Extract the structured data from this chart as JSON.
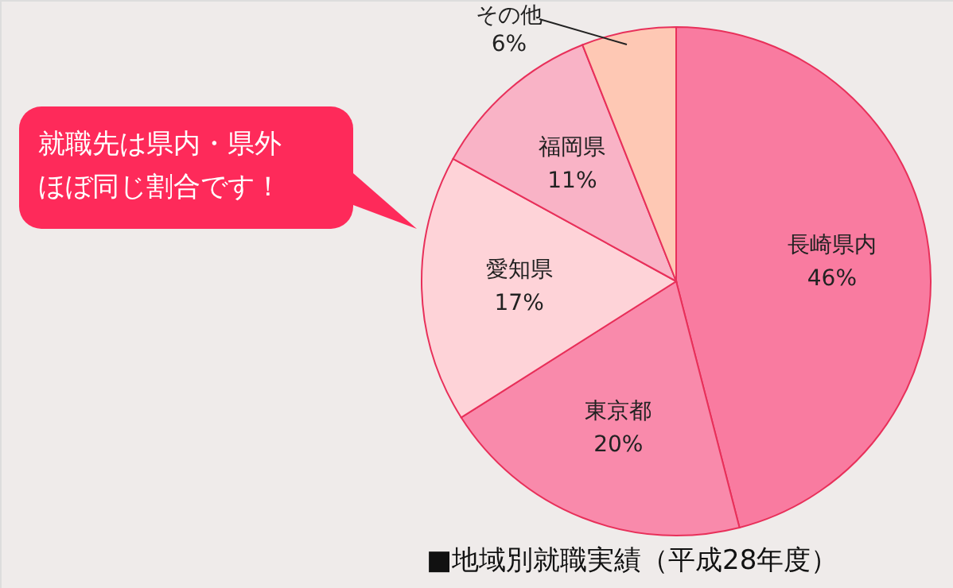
{
  "chart_data": {
    "type": "pie",
    "title": "■地域別就職実績（平成28年度）",
    "categories": [
      "長崎県内",
      "東京都",
      "愛知県",
      "福岡県",
      "その他"
    ],
    "values": [
      46,
      20,
      17,
      11,
      6
    ],
    "value_labels": [
      "46%",
      "20%",
      "17%",
      "11%",
      "6%"
    ],
    "colors": [
      "#f97ba0",
      "#f98aab",
      "#fed3d8",
      "#f9b3c6",
      "#fec8b4"
    ],
    "annotations": [
      "就職先は県内・県外ほぼ同じ割合です！"
    ]
  }
}
